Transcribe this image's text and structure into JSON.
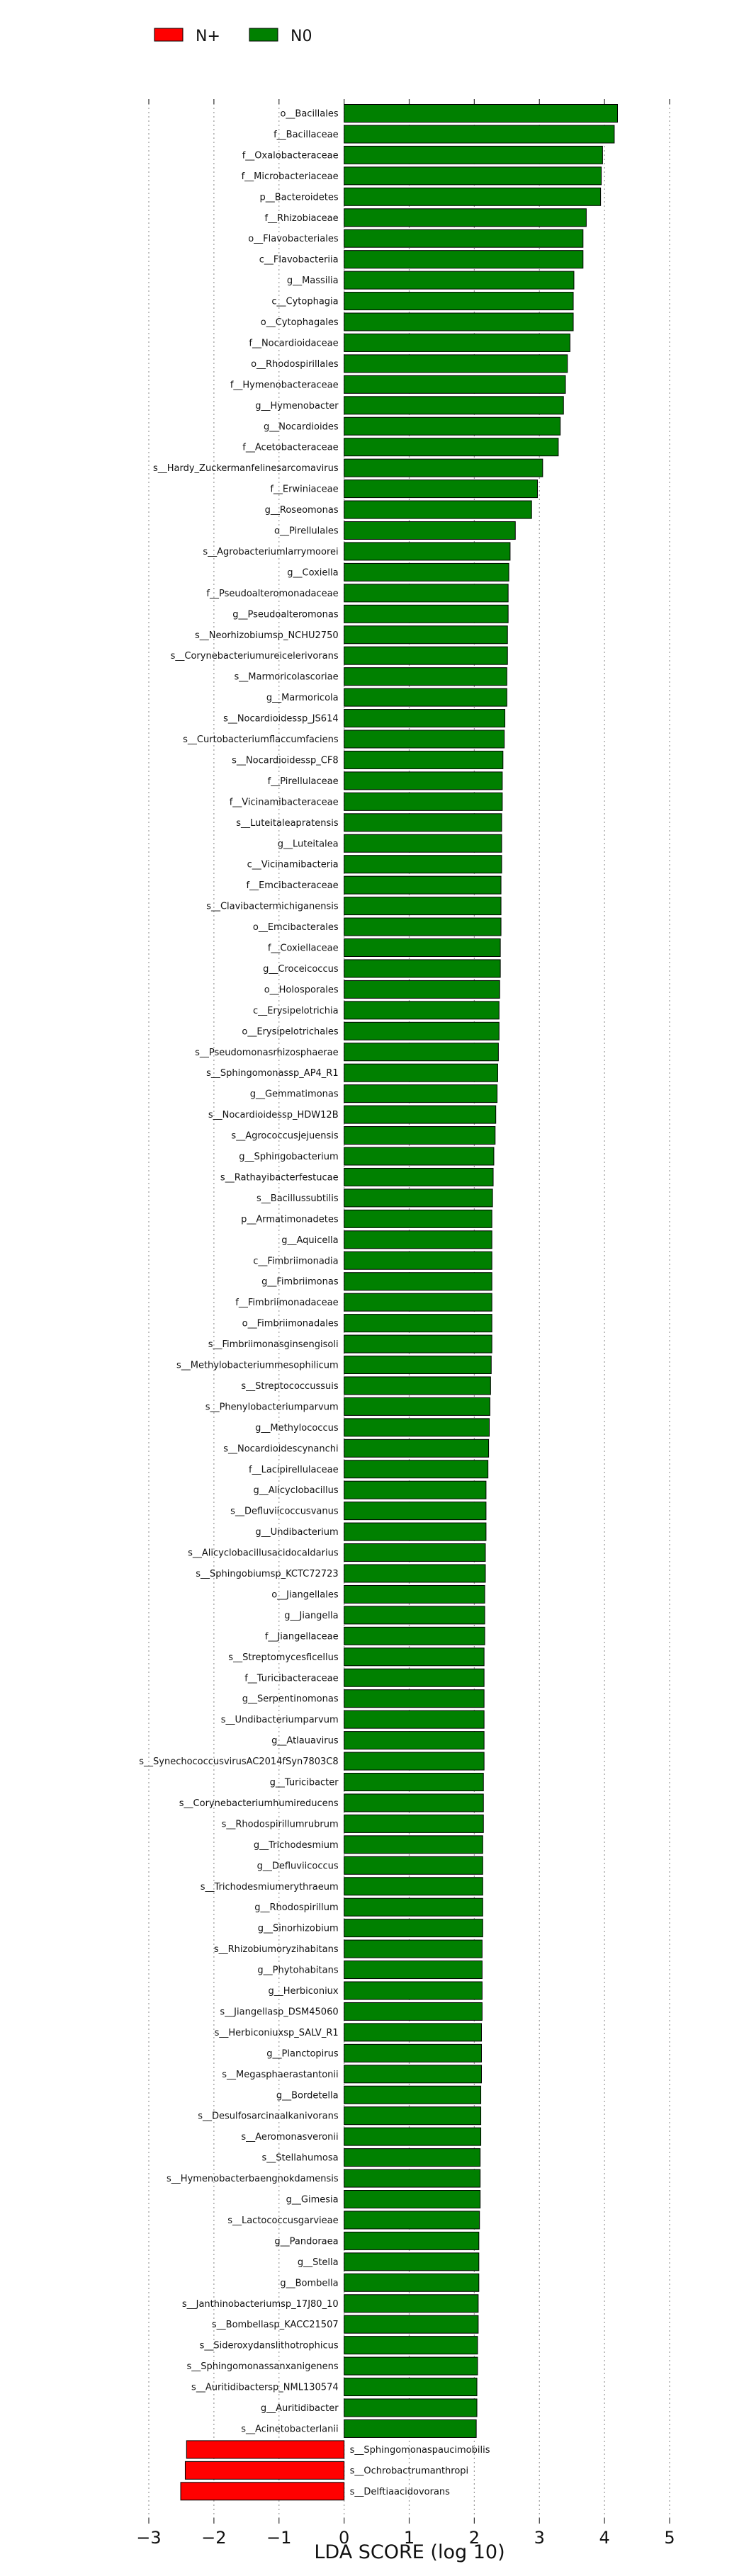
{
  "chart_data": {
    "type": "bar",
    "orientation": "horizontal",
    "xlabel": "LDA SCORE (log 10)",
    "xlim": [
      -3,
      5
    ],
    "xticks": [
      -3,
      -2,
      -1,
      0,
      1,
      2,
      3,
      4,
      5
    ],
    "grid": "vertical dotted",
    "legend_position": "top-left",
    "legend": [
      {
        "name": "N+",
        "color": "#ff0000"
      },
      {
        "name": "N0",
        "color": "#008000"
      }
    ],
    "bars": [
      {
        "label": "o__Bacillales",
        "value": 4.2,
        "group": "N0"
      },
      {
        "label": "f__Bacillaceae",
        "value": 4.15,
        "group": "N0"
      },
      {
        "label": "f__Oxalobacteraceae",
        "value": 3.97,
        "group": "N0"
      },
      {
        "label": "f__Microbacteriaceae",
        "value": 3.95,
        "group": "N0"
      },
      {
        "label": "p__Bacteroidetes",
        "value": 3.94,
        "group": "N0"
      },
      {
        "label": "f__Rhizobiaceae",
        "value": 3.72,
        "group": "N0"
      },
      {
        "label": "o__Flavobacteriales",
        "value": 3.67,
        "group": "N0"
      },
      {
        "label": "c__Flavobacteriia",
        "value": 3.67,
        "group": "N0"
      },
      {
        "label": "g__Massilia",
        "value": 3.53,
        "group": "N0"
      },
      {
        "label": "c__Cytophagia",
        "value": 3.52,
        "group": "N0"
      },
      {
        "label": "o__Cytophagales",
        "value": 3.52,
        "group": "N0"
      },
      {
        "label": "f__Nocardioidaceae",
        "value": 3.47,
        "group": "N0"
      },
      {
        "label": "o__Rhodospirillales",
        "value": 3.43,
        "group": "N0"
      },
      {
        "label": "f__Hymenobacteraceae",
        "value": 3.4,
        "group": "N0"
      },
      {
        "label": "g__Hymenobacter",
        "value": 3.37,
        "group": "N0"
      },
      {
        "label": "g__Nocardioides",
        "value": 3.32,
        "group": "N0"
      },
      {
        "label": "f__Acetobacteraceae",
        "value": 3.29,
        "group": "N0"
      },
      {
        "label": "s__Hardy_Zuckermanfelinesarcomavirus",
        "value": 3.05,
        "group": "N0"
      },
      {
        "label": "f__Erwiniaceae",
        "value": 2.97,
        "group": "N0"
      },
      {
        "label": "g__Roseomonas",
        "value": 2.88,
        "group": "N0"
      },
      {
        "label": "o__Pirellulales",
        "value": 2.63,
        "group": "N0"
      },
      {
        "label": "s__Agrobacteriumlarrymoorei",
        "value": 2.55,
        "group": "N0"
      },
      {
        "label": "g__Coxiella",
        "value": 2.53,
        "group": "N0"
      },
      {
        "label": "f__Pseudoalteromonadaceae",
        "value": 2.52,
        "group": "N0"
      },
      {
        "label": "g__Pseudoalteromonas",
        "value": 2.52,
        "group": "N0"
      },
      {
        "label": "s__Neorhizobiumsp_NCHU2750",
        "value": 2.51,
        "group": "N0"
      },
      {
        "label": "s__Corynebacteriumureicelerivorans",
        "value": 2.51,
        "group": "N0"
      },
      {
        "label": "s__Marmoricolascoriae",
        "value": 2.5,
        "group": "N0"
      },
      {
        "label": "g__Marmoricola",
        "value": 2.5,
        "group": "N0"
      },
      {
        "label": "s__Nocardioidessp_JS614",
        "value": 2.47,
        "group": "N0"
      },
      {
        "label": "s__Curtobacteriumflaccumfaciens",
        "value": 2.46,
        "group": "N0"
      },
      {
        "label": "s__Nocardioidessp_CF8",
        "value": 2.44,
        "group": "N0"
      },
      {
        "label": "f__Pirellulaceae",
        "value": 2.43,
        "group": "N0"
      },
      {
        "label": "f__Vicinamibacteraceae",
        "value": 2.43,
        "group": "N0"
      },
      {
        "label": "s__Luteitaleapratensis",
        "value": 2.42,
        "group": "N0"
      },
      {
        "label": "g__Luteitalea",
        "value": 2.42,
        "group": "N0"
      },
      {
        "label": "c__Vicinamibacteria",
        "value": 2.42,
        "group": "N0"
      },
      {
        "label": "f__Emcibacteraceae",
        "value": 2.41,
        "group": "N0"
      },
      {
        "label": "s__Clavibactermichiganensis",
        "value": 2.41,
        "group": "N0"
      },
      {
        "label": "o__Emcibacterales",
        "value": 2.41,
        "group": "N0"
      },
      {
        "label": "f__Coxiellaceae",
        "value": 2.4,
        "group": "N0"
      },
      {
        "label": "g__Croceicoccus",
        "value": 2.4,
        "group": "N0"
      },
      {
        "label": "o__Holosporales",
        "value": 2.39,
        "group": "N0"
      },
      {
        "label": "c__Erysipelotrichia",
        "value": 2.38,
        "group": "N0"
      },
      {
        "label": "o__Erysipelotrichales",
        "value": 2.38,
        "group": "N0"
      },
      {
        "label": "s__Pseudomonasrhizosphaerae",
        "value": 2.37,
        "group": "N0"
      },
      {
        "label": "s__Sphingomonassp_AP4_R1",
        "value": 2.36,
        "group": "N0"
      },
      {
        "label": "g__Gemmatimonas",
        "value": 2.35,
        "group": "N0"
      },
      {
        "label": "s__Nocardioidessp_HDW12B",
        "value": 2.33,
        "group": "N0"
      },
      {
        "label": "s__Agrococcusjejuensis",
        "value": 2.32,
        "group": "N0"
      },
      {
        "label": "g__Sphingobacterium",
        "value": 2.3,
        "group": "N0"
      },
      {
        "label": "s__Rathayibacterfestucae",
        "value": 2.29,
        "group": "N0"
      },
      {
        "label": "s__Bacillussubtilis",
        "value": 2.28,
        "group": "N0"
      },
      {
        "label": "p__Armatimonadetes",
        "value": 2.27,
        "group": "N0"
      },
      {
        "label": "g__Aquicella",
        "value": 2.27,
        "group": "N0"
      },
      {
        "label": "c__Fimbriimonadia",
        "value": 2.27,
        "group": "N0"
      },
      {
        "label": "g__Fimbriimonas",
        "value": 2.27,
        "group": "N0"
      },
      {
        "label": "f__Fimbriimonadaceae",
        "value": 2.27,
        "group": "N0"
      },
      {
        "label": "o__Fimbriimonadales",
        "value": 2.27,
        "group": "N0"
      },
      {
        "label": "s__Fimbriimonasginsengisoli",
        "value": 2.27,
        "group": "N0"
      },
      {
        "label": "s__Methylobacteriummesophilicum",
        "value": 2.26,
        "group": "N0"
      },
      {
        "label": "s__Streptococcussuis",
        "value": 2.25,
        "group": "N0"
      },
      {
        "label": "s__Phenylobacteriumparvum",
        "value": 2.24,
        "group": "N0"
      },
      {
        "label": "g__Methylococcus",
        "value": 2.23,
        "group": "N0"
      },
      {
        "label": "s__Nocardioidescynanchi",
        "value": 2.22,
        "group": "N0"
      },
      {
        "label": "f__Lacipirellulaceae",
        "value": 2.21,
        "group": "N0"
      },
      {
        "label": "g__Alicyclobacillus",
        "value": 2.18,
        "group": "N0"
      },
      {
        "label": "s__Defluviicoccusvanus",
        "value": 2.18,
        "group": "N0"
      },
      {
        "label": "g__Undibacterium",
        "value": 2.18,
        "group": "N0"
      },
      {
        "label": "s__Alicyclobacillusacidocaldarius",
        "value": 2.17,
        "group": "N0"
      },
      {
        "label": "s__Sphingobiumsp_KCTC72723",
        "value": 2.17,
        "group": "N0"
      },
      {
        "label": "o__Jiangellales",
        "value": 2.16,
        "group": "N0"
      },
      {
        "label": "g__Jiangella",
        "value": 2.16,
        "group": "N0"
      },
      {
        "label": "f__Jiangellaceae",
        "value": 2.16,
        "group": "N0"
      },
      {
        "label": "s__Streptomycesficellus",
        "value": 2.15,
        "group": "N0"
      },
      {
        "label": "f__Turicibacteraceae",
        "value": 2.15,
        "group": "N0"
      },
      {
        "label": "g__Serpentinomonas",
        "value": 2.15,
        "group": "N0"
      },
      {
        "label": "s__Undibacteriumparvum",
        "value": 2.15,
        "group": "N0"
      },
      {
        "label": "g__Atlauavirus",
        "value": 2.15,
        "group": "N0"
      },
      {
        "label": "s__SynechococcusvirusAC2014fSyn7803C8",
        "value": 2.15,
        "group": "N0"
      },
      {
        "label": "g__Turicibacter",
        "value": 2.14,
        "group": "N0"
      },
      {
        "label": "s__Corynebacteriumhumireducens",
        "value": 2.14,
        "group": "N0"
      },
      {
        "label": "s__Rhodospirillumrubrum",
        "value": 2.14,
        "group": "N0"
      },
      {
        "label": "g__Trichodesmium",
        "value": 2.13,
        "group": "N0"
      },
      {
        "label": "g__Defluviicoccus",
        "value": 2.13,
        "group": "N0"
      },
      {
        "label": "s__Trichodesmiumerythraeum",
        "value": 2.13,
        "group": "N0"
      },
      {
        "label": "g__Rhodospirillum",
        "value": 2.13,
        "group": "N0"
      },
      {
        "label": "g__Sinorhizobium",
        "value": 2.13,
        "group": "N0"
      },
      {
        "label": "s__Rhizobiumoryzihabitans",
        "value": 2.12,
        "group": "N0"
      },
      {
        "label": "g__Phytohabitans",
        "value": 2.12,
        "group": "N0"
      },
      {
        "label": "g__Herbiconiux",
        "value": 2.12,
        "group": "N0"
      },
      {
        "label": "s__Jiangellasp_DSM45060",
        "value": 2.12,
        "group": "N0"
      },
      {
        "label": "s__Herbiconiuxsp_SALV_R1",
        "value": 2.11,
        "group": "N0"
      },
      {
        "label": "g__Planctopirus",
        "value": 2.11,
        "group": "N0"
      },
      {
        "label": "s__Megasphaerastantonii",
        "value": 2.11,
        "group": "N0"
      },
      {
        "label": "g__Bordetella",
        "value": 2.1,
        "group": "N0"
      },
      {
        "label": "s__Desulfosarcinaalkanivorans",
        "value": 2.1,
        "group": "N0"
      },
      {
        "label": "s__Aeromonasveronii",
        "value": 2.1,
        "group": "N0"
      },
      {
        "label": "s__Stellahumosa",
        "value": 2.09,
        "group": "N0"
      },
      {
        "label": "s__Hymenobacterbaengnokdamensis",
        "value": 2.09,
        "group": "N0"
      },
      {
        "label": "g__Gimesia",
        "value": 2.09,
        "group": "N0"
      },
      {
        "label": "s__Lactococcusgarvieae",
        "value": 2.08,
        "group": "N0"
      },
      {
        "label": "g__Pandoraea",
        "value": 2.07,
        "group": "N0"
      },
      {
        "label": "g__Stella",
        "value": 2.07,
        "group": "N0"
      },
      {
        "label": "g__Bombella",
        "value": 2.07,
        "group": "N0"
      },
      {
        "label": "s__Janthinobacteriumsp_17J80_10",
        "value": 2.06,
        "group": "N0"
      },
      {
        "label": "s__Bombellasp_KACC21507",
        "value": 2.06,
        "group": "N0"
      },
      {
        "label": "s__Sideroxydanslithotrophicus",
        "value": 2.05,
        "group": "N0"
      },
      {
        "label": "s__Sphingomonassanxanigenens",
        "value": 2.05,
        "group": "N0"
      },
      {
        "label": "s__Auritidibactersp_NML130574",
        "value": 2.04,
        "group": "N0"
      },
      {
        "label": "g__Auritidibacter",
        "value": 2.04,
        "group": "N0"
      },
      {
        "label": "s__Acinetobacterlanii",
        "value": 2.03,
        "group": "N0"
      },
      {
        "label": "s__Sphingomonaspaucimobilis",
        "value": -2.42,
        "group": "N+"
      },
      {
        "label": "s__Ochrobactrumanthropi",
        "value": -2.44,
        "group": "N+"
      },
      {
        "label": "s__Delftiaacidovorans",
        "value": -2.51,
        "group": "N+"
      }
    ]
  }
}
